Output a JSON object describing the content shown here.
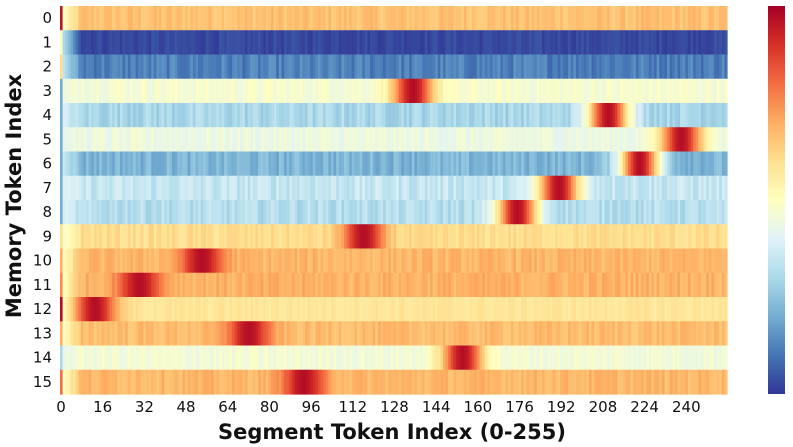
{
  "chart_data": {
    "type": "heatmap",
    "title": "",
    "xlabel": "Segment Token Index (0-255)",
    "ylabel": "Memory Token Index",
    "x_range": [
      0,
      255
    ],
    "xticks": [
      0,
      16,
      32,
      48,
      64,
      80,
      96,
      112,
      128,
      144,
      160,
      176,
      192,
      208,
      224,
      240
    ],
    "rows": [
      "0",
      "1",
      "2",
      "3",
      "4",
      "5",
      "6",
      "7",
      "8",
      "9",
      "10",
      "11",
      "12",
      "13",
      "14",
      "15"
    ],
    "colormap": "RdYlBu_r",
    "colormap_stops": [
      "#313695",
      "#4575b4",
      "#74add1",
      "#abd9e9",
      "#e0f3f8",
      "#ffffbf",
      "#fee090",
      "#fdae61",
      "#f46d43",
      "#d73027",
      "#a50026"
    ],
    "colorbar": true,
    "row_patterns": [
      {
        "row": 0,
        "base": 0.66,
        "noise": 0.03,
        "peak_at": null,
        "first_token": 0.95
      },
      {
        "row": 1,
        "base": 0.03,
        "noise": 0.02,
        "peak_at": null,
        "first_token": 0.5
      },
      {
        "row": 2,
        "base": 0.12,
        "noise": 0.04,
        "peak_at": null,
        "first_token": 0.6
      },
      {
        "row": 3,
        "base": 0.47,
        "noise": 0.03,
        "peak_at": 135,
        "first_token": 0.2
      },
      {
        "row": 4,
        "base": 0.3,
        "noise": 0.04,
        "peak_at": 210,
        "first_token": 0.2
      },
      {
        "row": 5,
        "base": 0.44,
        "noise": 0.03,
        "peak_at": 238,
        "first_token": 0.2
      },
      {
        "row": 6,
        "base": 0.22,
        "noise": 0.04,
        "peak_at": 222,
        "first_token": 0.2
      },
      {
        "row": 7,
        "base": 0.35,
        "noise": 0.04,
        "peak_at": 191,
        "first_token": 0.2
      },
      {
        "row": 8,
        "base": 0.32,
        "noise": 0.04,
        "peak_at": 175,
        "first_token": 0.2
      },
      {
        "row": 9,
        "base": 0.6,
        "noise": 0.03,
        "peak_at": 116,
        "first_token": 0.6
      },
      {
        "row": 10,
        "base": 0.68,
        "noise": 0.03,
        "peak_at": 54,
        "first_token": 0.7
      },
      {
        "row": 11,
        "base": 0.69,
        "noise": 0.03,
        "peak_at": 30,
        "first_token": 0.75
      },
      {
        "row": 12,
        "base": 0.58,
        "noise": 0.02,
        "peak_at": 13,
        "first_token": 0.97
      },
      {
        "row": 13,
        "base": 0.67,
        "noise": 0.03,
        "peak_at": 72,
        "first_token": 0.7
      },
      {
        "row": 14,
        "base": 0.46,
        "noise": 0.03,
        "peak_at": 154,
        "first_token": 0.3
      },
      {
        "row": 15,
        "base": 0.68,
        "noise": 0.03,
        "peak_at": 93,
        "first_token": 0.8
      }
    ]
  }
}
